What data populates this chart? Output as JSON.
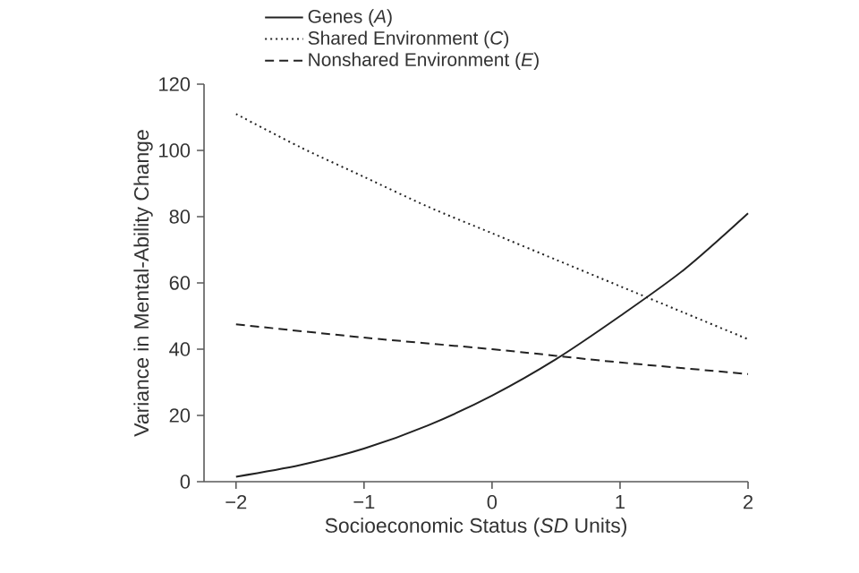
{
  "chart_data": {
    "type": "line",
    "xlabel": "Socioeconomic Status (*SD* Units)",
    "ylabel": "Variance in Mental-Ability Change",
    "xlim": [
      -2.25,
      2
    ],
    "ylim": [
      0,
      120
    ],
    "xticks": [
      {
        "value": -2,
        "label": "−2"
      },
      {
        "value": -1,
        "label": "−1"
      },
      0,
      1,
      2
    ],
    "yticks": [
      0,
      20,
      40,
      60,
      80,
      100,
      120
    ],
    "legend": "top",
    "grid": false,
    "series": [
      {
        "name": "Genes (*A*)",
        "color": "#222222",
        "line_style": "solid",
        "x": [
          -2,
          -1.5,
          -1,
          -0.5,
          0,
          0.5,
          1,
          1.5,
          2
        ],
        "values": [
          1.5,
          5,
          10,
          17,
          26,
          37,
          50,
          64,
          81
        ]
      },
      {
        "name": "Shared Environment (*C*)",
        "color": "#222222",
        "line_style": "dotted",
        "x": [
          -2,
          -1.5,
          -1,
          -0.5,
          0,
          0.5,
          1,
          1.5,
          2
        ],
        "values": [
          111,
          101,
          92,
          83,
          75,
          67,
          59,
          51,
          43
        ]
      },
      {
        "name": "Nonshared Environment (*E*)",
        "color": "#222222",
        "line_style": "dashed",
        "x": [
          -2,
          -1,
          0,
          0.5,
          1,
          2
        ],
        "values": [
          47.5,
          43.5,
          40,
          38,
          36,
          32.5
        ]
      }
    ]
  }
}
